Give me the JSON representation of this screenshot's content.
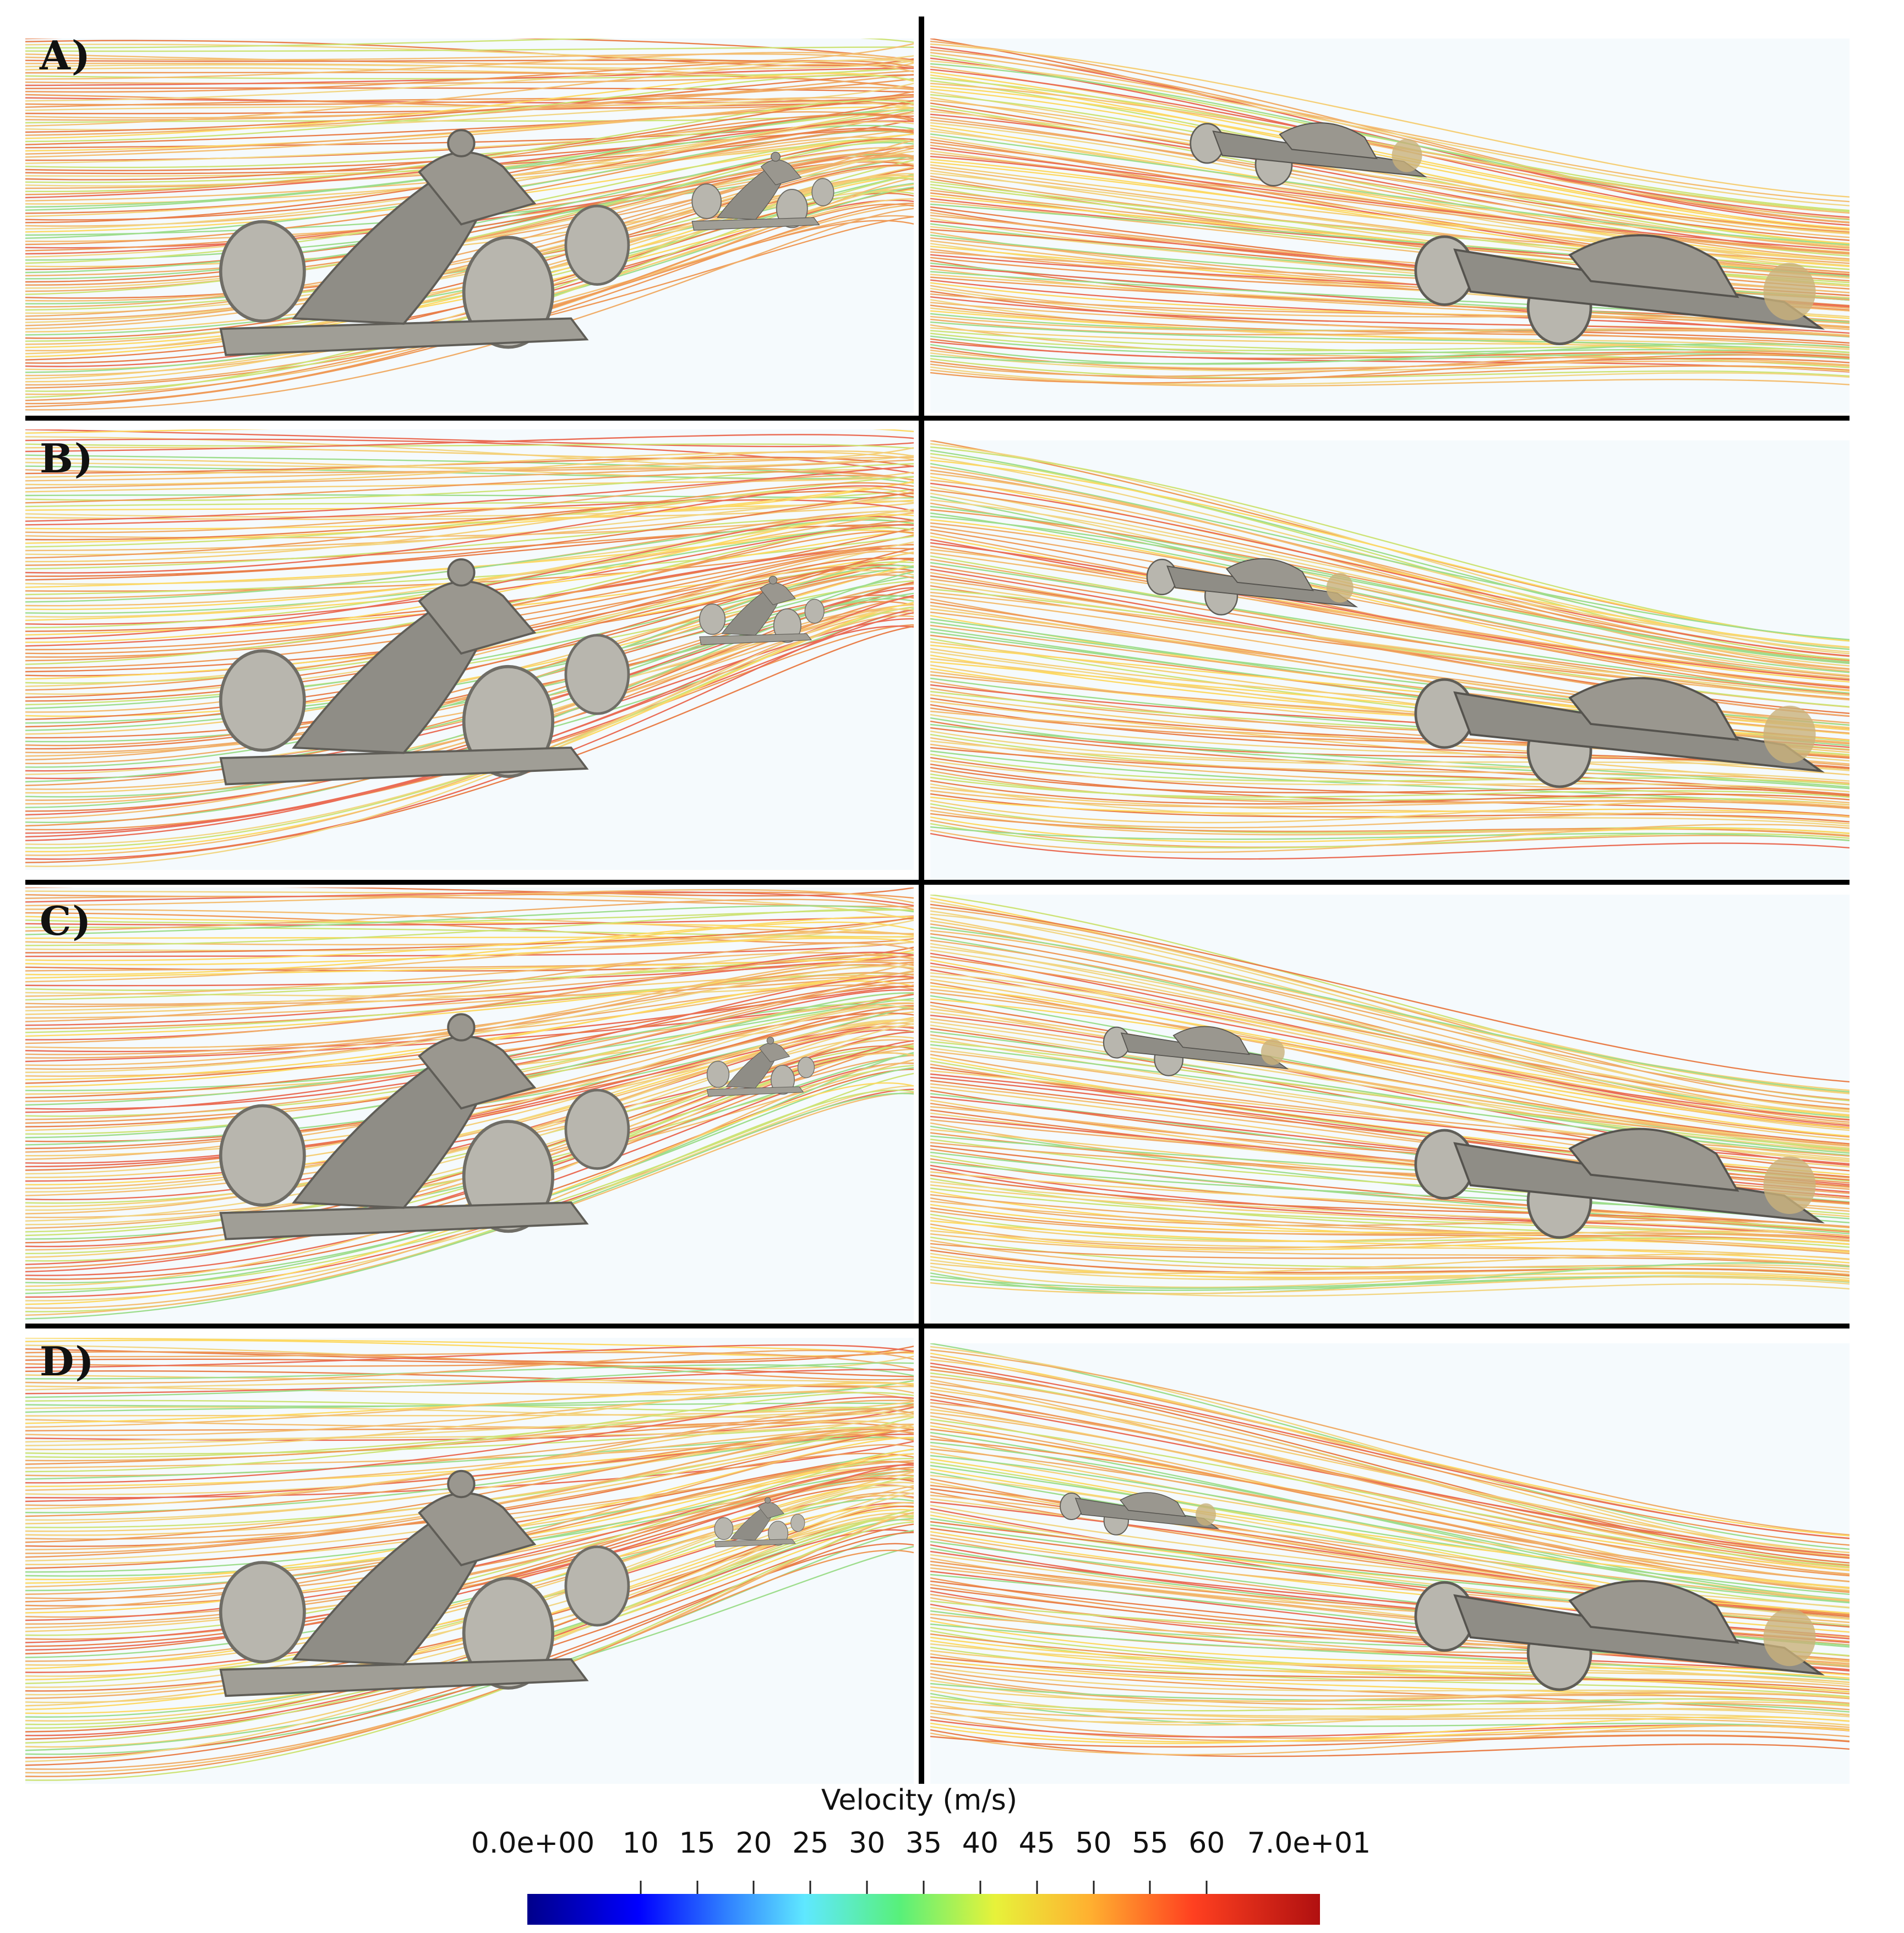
{
  "panels": {
    "labels": [
      "A)",
      "B)",
      "C)",
      "D)"
    ]
  },
  "colorbar": {
    "title": "Velocity (m/s)",
    "ticks": [
      "0.0e+00",
      "10",
      "15",
      "20",
      "25",
      "30",
      "35",
      "40",
      "45",
      "50",
      "55",
      "60",
      "7.0e+01"
    ],
    "tick_values": [
      0,
      10,
      15,
      20,
      25,
      30,
      35,
      40,
      45,
      50,
      55,
      60,
      70
    ],
    "range": [
      0,
      70
    ],
    "colormap": [
      "#00008b",
      "#0000ff",
      "#2f7fff",
      "#5fe8ff",
      "#58f07a",
      "#e7f23a",
      "#ffb030",
      "#ff4020",
      "#b01010"
    ]
  },
  "colors": {
    "background": "#f5fafd",
    "car_body": "#8f8d86",
    "tire": "#b8b6ae",
    "divider": "#000000"
  }
}
